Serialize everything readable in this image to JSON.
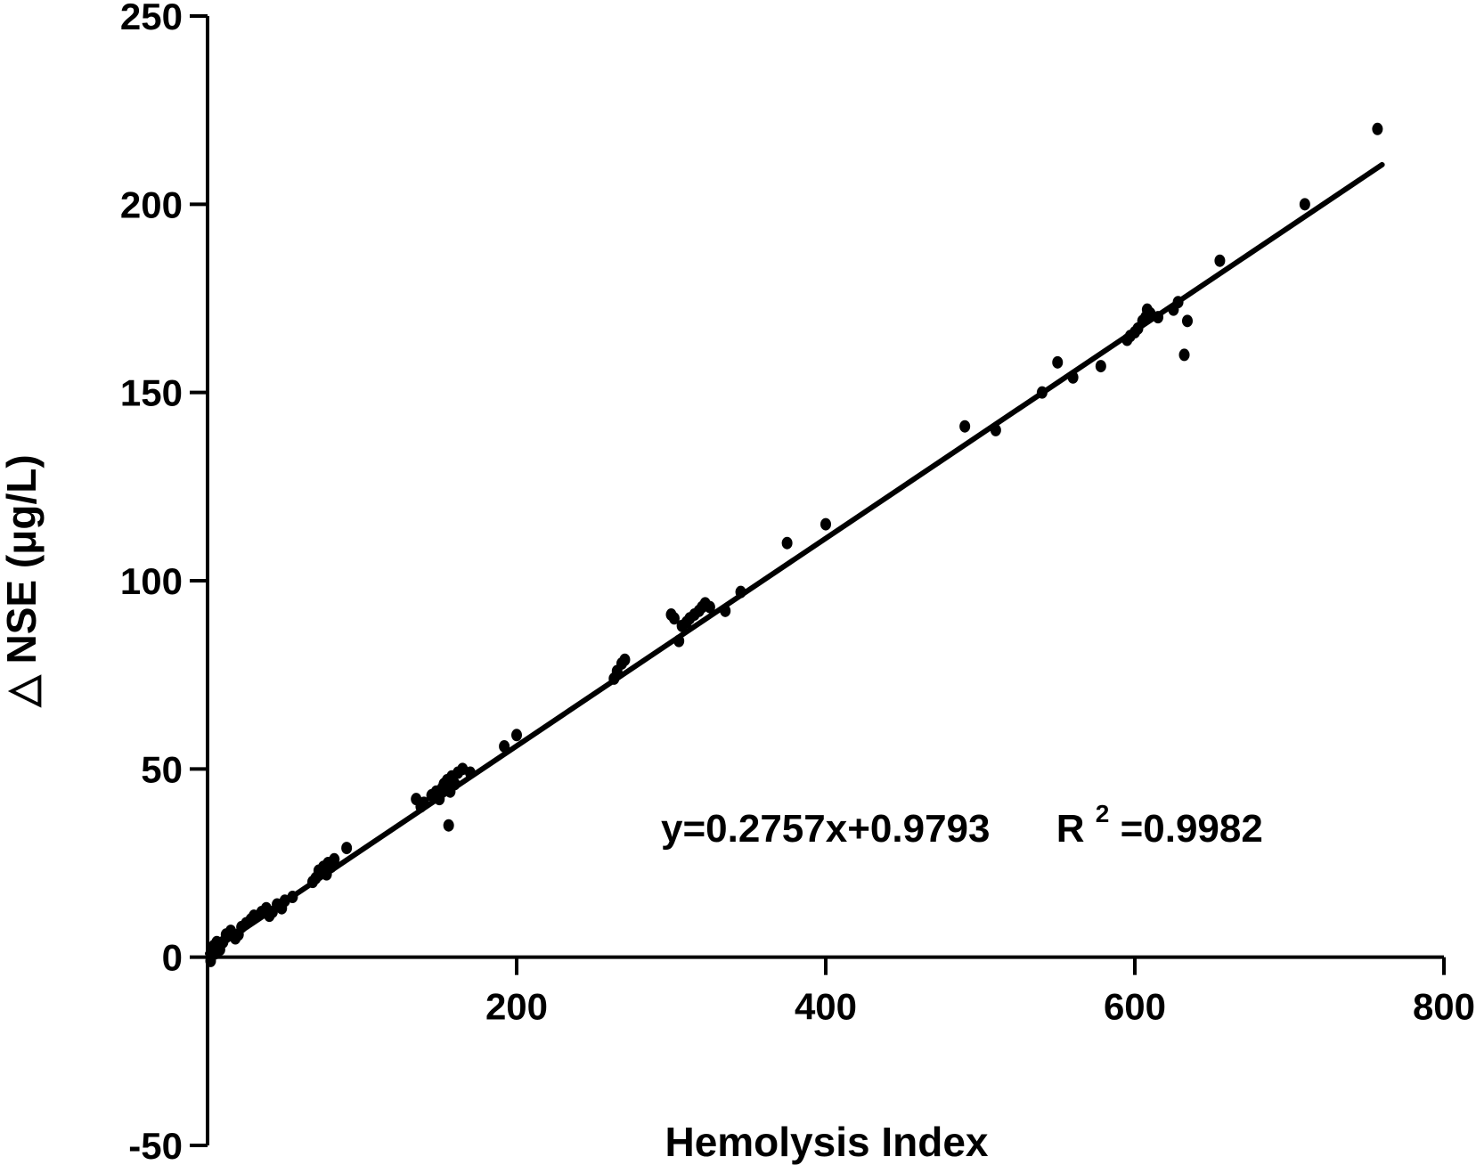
{
  "chart_data": {
    "type": "scatter",
    "title": "",
    "xlabel": "Hemolysis Index",
    "ylabel": "△ NSE (μg/L)",
    "xlim": [
      0,
      800
    ],
    "ylim": [
      -50,
      250
    ],
    "x_ticks": [
      "200",
      "400",
      "600",
      "800"
    ],
    "y_ticks": [
      "-50",
      "0",
      "50",
      "100",
      "150",
      "200",
      "250"
    ],
    "grid": false,
    "legend": "none",
    "annotation": {
      "equation": "y=0.2757x+0.9793",
      "r2_label": "R",
      "r2_sup": "2",
      "r2_value": "=0.9982"
    },
    "fit": {
      "slope": 0.2757,
      "intercept": 0.9793,
      "x_range": [
        0,
        760
      ]
    },
    "series": [
      {
        "x": [
          2,
          3,
          4,
          5,
          6,
          7,
          8,
          10,
          12,
          15,
          18,
          20,
          22,
          25,
          28,
          30,
          35,
          38,
          40,
          42,
          45,
          48,
          50,
          55,
          68,
          70,
          72,
          75,
          77,
          78,
          80,
          82,
          90,
          135,
          138,
          140,
          145,
          148,
          150,
          152,
          153,
          155,
          156,
          157,
          158,
          160,
          162,
          165,
          170,
          192,
          200,
          263,
          265,
          268,
          270,
          300,
          302,
          305,
          307,
          310,
          312,
          315,
          318,
          320,
          322,
          325,
          335,
          345,
          375,
          400,
          490,
          510,
          540,
          550,
          560,
          578,
          595,
          597,
          600,
          602,
          605,
          607,
          608,
          610,
          615,
          625,
          628,
          632,
          634,
          655,
          710,
          757
        ],
        "y": [
          -1,
          2,
          3,
          1,
          4,
          3,
          2,
          4,
          6,
          7,
          5,
          6,
          8,
          9,
          10,
          11,
          12,
          13,
          11,
          12,
          14,
          13,
          15,
          16,
          20,
          21,
          23,
          24,
          22,
          25,
          24,
          26,
          29,
          42,
          40,
          41,
          43,
          44,
          42,
          45,
          46,
          47,
          35,
          44,
          48,
          46,
          49,
          50,
          49,
          56,
          59,
          74,
          76,
          78,
          79,
          91,
          90,
          84,
          88,
          89,
          90,
          91,
          92,
          93,
          94,
          93,
          92,
          97,
          110,
          115,
          141,
          140,
          150,
          158,
          154,
          157,
          164,
          165,
          166,
          167,
          169,
          170,
          172,
          171,
          170,
          172,
          174,
          160,
          169,
          185,
          200,
          220
        ]
      }
    ]
  }
}
